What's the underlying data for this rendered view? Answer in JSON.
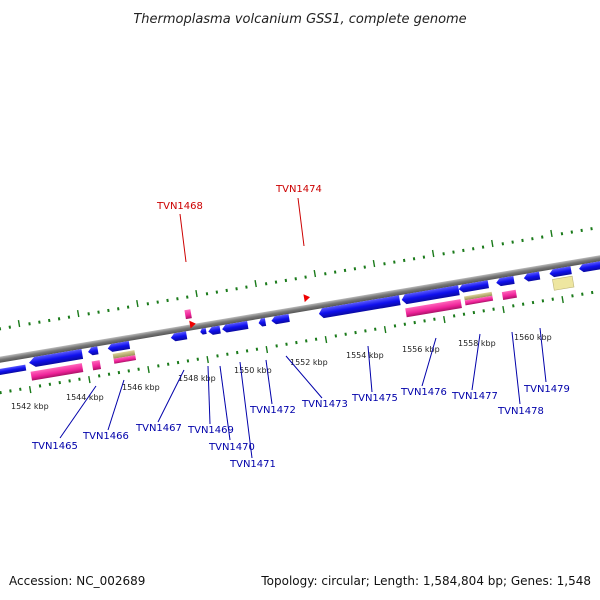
{
  "title": "Thermoplasma volcanium GSS1, complete genome",
  "footer": {
    "accession": "Accession: NC_002689",
    "topology": "Topology: circular; Length: 1,584,804 bp; Genes: 1,548"
  },
  "ticks": [
    "1542 kbp",
    "1544 kbp",
    "1546 kbp",
    "1548 kbp",
    "1550 kbp",
    "1552 kbp",
    "1554 kbp",
    "1556 kbp",
    "1558 kbp",
    "1560 kbp"
  ],
  "gene_labels_minus": [
    "TVN1465",
    "TVN1466",
    "TVN1467",
    "TVN1469",
    "TVN1470",
    "TVN1471",
    "TVN1472",
    "TVN1473",
    "TVN1475",
    "TVN1476",
    "TVN1477",
    "TVN1478",
    "TVN1479"
  ],
  "gene_labels_plus": [
    "TVN1468",
    "TVN1474"
  ],
  "colors": {
    "backbone": "#888888",
    "gene": "#1a1aee",
    "rna_pink": "#ee2299",
    "rna_tan": "#bbb377",
    "pale_yellow": "#eee6a0",
    "tick_green": "#1a7a1a",
    "label_blue": "#0000aa",
    "label_red": "#cc0000"
  }
}
